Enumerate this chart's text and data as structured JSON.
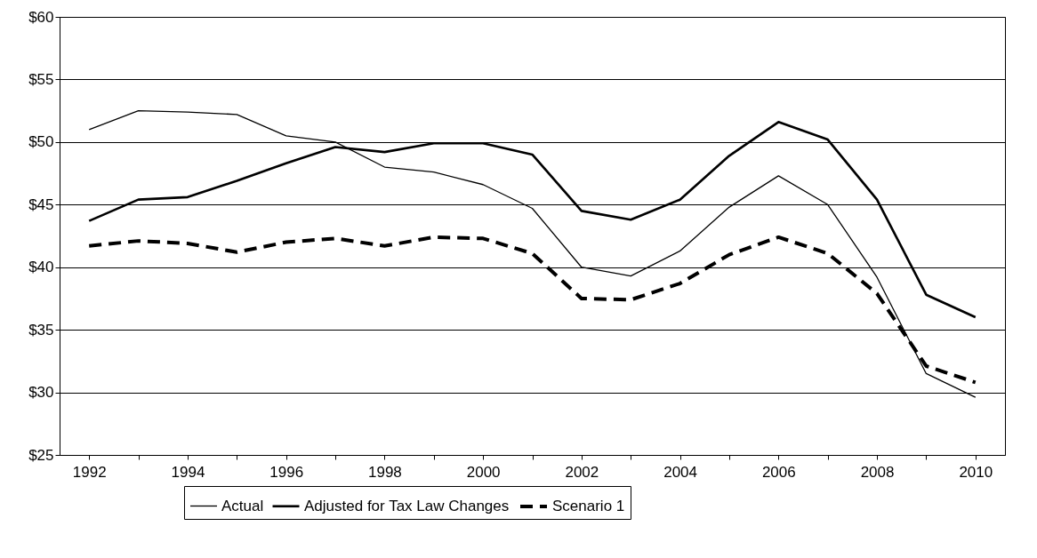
{
  "chart_data": {
    "type": "line",
    "categories": [
      "1992",
      null,
      "1994",
      null,
      "1996",
      null,
      "1998",
      null,
      "2000",
      null,
      "2002",
      null,
      "2004",
      null,
      "2006",
      null,
      "2008",
      null,
      "2010"
    ],
    "series": [
      {
        "name": "Actual",
        "color": "#000000",
        "line_style": "solid",
        "values": [
          51.0,
          52.5,
          52.4,
          52.2,
          50.5,
          50.0,
          48.0,
          47.6,
          46.6,
          44.7,
          40.0,
          39.3,
          41.3,
          44.8,
          47.3,
          45.0,
          39.2,
          31.5,
          29.6
        ]
      },
      {
        "name": "Adjusted for Tax Law Changes",
        "color": "#000000",
        "line_style": "solid",
        "values": [
          43.7,
          45.4,
          45.6,
          46.9,
          48.3,
          49.6,
          49.2,
          49.9,
          49.9,
          49.0,
          44.5,
          43.8,
          45.4,
          48.9,
          51.6,
          50.2,
          45.4,
          37.8,
          36.0
        ]
      },
      {
        "name": "Scenario 1",
        "color": "#000000",
        "line_style": "dashed",
        "values": [
          41.7,
          42.1,
          41.9,
          41.2,
          42.0,
          42.3,
          41.7,
          42.4,
          42.3,
          41.1,
          37.5,
          37.4,
          38.7,
          41.0,
          42.4,
          41.1,
          37.9,
          32.1,
          30.8
        ]
      }
    ],
    "ylim": [
      25,
      60
    ],
    "yticks": [
      {
        "value": 25,
        "label": "$25"
      },
      {
        "value": 30,
        "label": "$30"
      },
      {
        "value": 35,
        "label": "$35"
      },
      {
        "value": 40,
        "label": "$40"
      },
      {
        "value": 45,
        "label": "$45"
      },
      {
        "value": 50,
        "label": "$50"
      },
      {
        "value": 55,
        "label": "$55"
      },
      {
        "value": 60,
        "label": "$60"
      }
    ],
    "grid": "y",
    "legend": "bottom",
    "marker": "none"
  }
}
